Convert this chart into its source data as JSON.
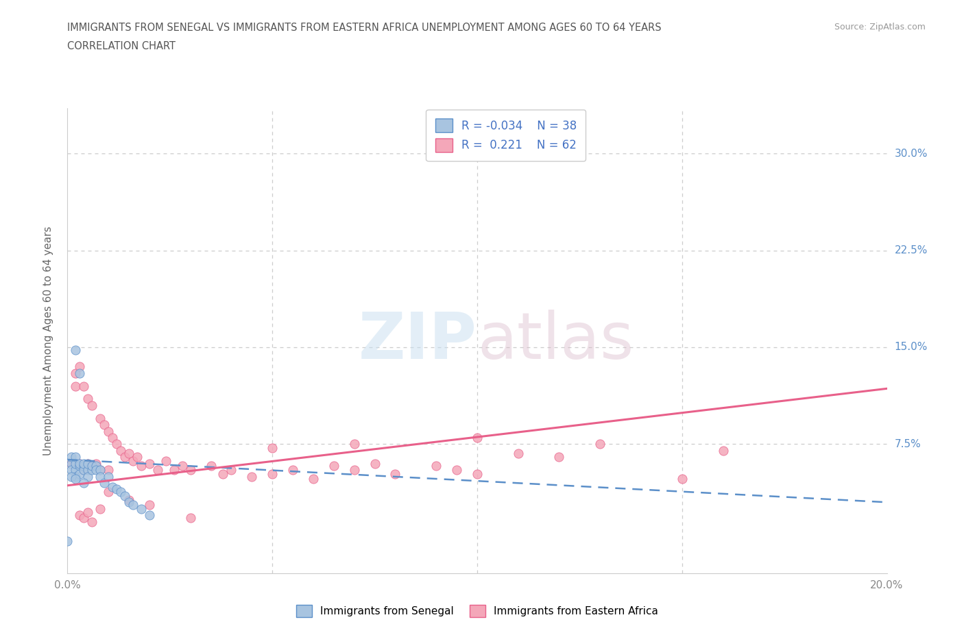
{
  "title_line1": "IMMIGRANTS FROM SENEGAL VS IMMIGRANTS FROM EASTERN AFRICA UNEMPLOYMENT AMONG AGES 60 TO 64 YEARS",
  "title_line2": "CORRELATION CHART",
  "source": "Source: ZipAtlas.com",
  "ylabel": "Unemployment Among Ages 60 to 64 years",
  "xlim": [
    0.0,
    0.2
  ],
  "ylim": [
    -0.025,
    0.335
  ],
  "watermark": "ZIPatlas",
  "senegal_R": -0.034,
  "senegal_N": 38,
  "eastern_R": 0.221,
  "eastern_N": 62,
  "senegal_color": "#a8c4e0",
  "eastern_color": "#f4a7b9",
  "senegal_line_color": "#5b8fc9",
  "eastern_line_color": "#e8608a",
  "senegal_scatter_x": [
    0.0,
    0.001,
    0.001,
    0.001,
    0.002,
    0.002,
    0.002,
    0.002,
    0.003,
    0.003,
    0.003,
    0.004,
    0.004,
    0.004,
    0.005,
    0.005,
    0.005,
    0.006,
    0.006,
    0.007,
    0.007,
    0.008,
    0.008,
    0.009,
    0.01,
    0.011,
    0.012,
    0.013,
    0.014,
    0.015,
    0.016,
    0.018,
    0.02,
    0.002,
    0.003,
    0.001,
    0.002,
    0.004
  ],
  "senegal_scatter_y": [
    0.0,
    0.06,
    0.055,
    0.065,
    0.055,
    0.06,
    0.05,
    0.065,
    0.058,
    0.06,
    0.052,
    0.058,
    0.055,
    0.06,
    0.055,
    0.06,
    0.05,
    0.055,
    0.058,
    0.058,
    0.055,
    0.055,
    0.05,
    0.045,
    0.05,
    0.042,
    0.04,
    0.038,
    0.035,
    0.03,
    0.028,
    0.025,
    0.02,
    0.148,
    0.13,
    0.05,
    0.048,
    0.045
  ],
  "eastern_scatter_x": [
    0.001,
    0.002,
    0.002,
    0.003,
    0.003,
    0.004,
    0.004,
    0.005,
    0.005,
    0.006,
    0.006,
    0.007,
    0.008,
    0.008,
    0.009,
    0.01,
    0.01,
    0.011,
    0.012,
    0.013,
    0.014,
    0.015,
    0.016,
    0.017,
    0.018,
    0.02,
    0.022,
    0.024,
    0.026,
    0.028,
    0.03,
    0.035,
    0.038,
    0.04,
    0.045,
    0.05,
    0.055,
    0.06,
    0.065,
    0.07,
    0.075,
    0.08,
    0.09,
    0.095,
    0.1,
    0.11,
    0.12,
    0.13,
    0.15,
    0.16,
    0.003,
    0.004,
    0.005,
    0.006,
    0.008,
    0.01,
    0.015,
    0.02,
    0.03,
    0.05,
    0.07,
    0.1
  ],
  "eastern_scatter_y": [
    0.06,
    0.13,
    0.12,
    0.135,
    0.06,
    0.12,
    0.055,
    0.11,
    0.06,
    0.105,
    0.058,
    0.06,
    0.095,
    0.055,
    0.09,
    0.085,
    0.055,
    0.08,
    0.075,
    0.07,
    0.065,
    0.068,
    0.062,
    0.065,
    0.058,
    0.06,
    0.055,
    0.062,
    0.055,
    0.058,
    0.055,
    0.058,
    0.052,
    0.055,
    0.05,
    0.052,
    0.055,
    0.048,
    0.058,
    0.055,
    0.06,
    0.052,
    0.058,
    0.055,
    0.052,
    0.068,
    0.065,
    0.075,
    0.048,
    0.07,
    0.02,
    0.018,
    0.022,
    0.015,
    0.025,
    0.038,
    0.032,
    0.028,
    0.018,
    0.072,
    0.075,
    0.08
  ],
  "sen_line_x0": 0.0,
  "sen_line_x1": 0.2,
  "sen_line_y0": 0.063,
  "sen_line_y1": 0.03,
  "east_line_x0": 0.0,
  "east_line_x1": 0.2,
  "east_line_y0": 0.043,
  "east_line_y1": 0.118,
  "bg_color": "#ffffff",
  "grid_color": "#cccccc",
  "axis_label_color": "#5b8fc9",
  "title_color": "#555555",
  "tick_color": "#888888"
}
